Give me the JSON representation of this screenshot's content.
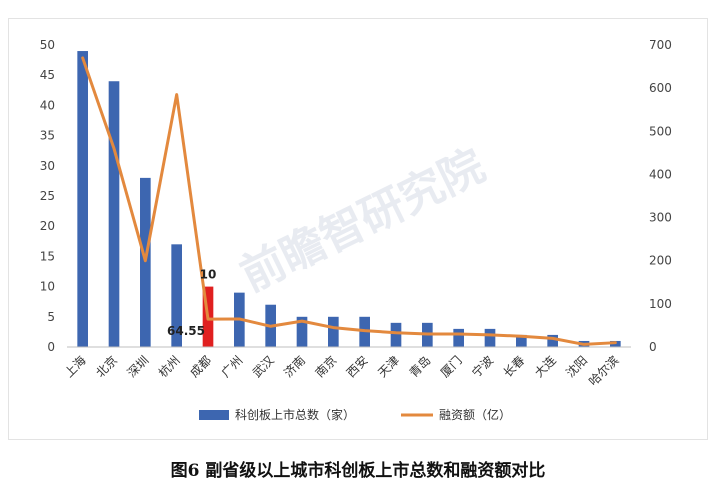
{
  "chart_data": {
    "type": "bar",
    "title": "",
    "categories": [
      "上海",
      "北京",
      "深圳",
      "杭州",
      "成都",
      "广州",
      "武汉",
      "济南",
      "南京",
      "西安",
      "天津",
      "青岛",
      "厦门",
      "宁波",
      "长春",
      "大连",
      "沈阳",
      "哈尔滨"
    ],
    "series": [
      {
        "name": "科创板上市总数（家）",
        "type": "bar",
        "axis": "left",
        "values": [
          49,
          44,
          28,
          17,
          10,
          9,
          7,
          5,
          5,
          5,
          4,
          4,
          3,
          3,
          2,
          2,
          1,
          1
        ]
      },
      {
        "name": "融资额（亿）",
        "type": "line",
        "axis": "right",
        "values": [
          670,
          460,
          200,
          585,
          64.55,
          65,
          48,
          60,
          45,
          38,
          33,
          30,
          30,
          28,
          25,
          20,
          6,
          10
        ]
      }
    ],
    "ylim_left": [
      0,
      50
    ],
    "yticks_left": [
      "0",
      "5",
      "10",
      "15",
      "20",
      "25",
      "30",
      "35",
      "40",
      "45",
      "50"
    ],
    "ylim_right": [
      0,
      700
    ],
    "yticks_right": [
      "0",
      "100",
      "200",
      "300",
      "400",
      "500",
      "600",
      "700"
    ],
    "highlight": {
      "index": 4,
      "color": "#e02020",
      "bar_label": "10",
      "line_label": "64.55"
    },
    "legend_position": "bottom",
    "grid": false,
    "colors": {
      "bar": "#3d66b0",
      "line": "#e3893e"
    },
    "watermark": "前瞻智研究院"
  },
  "caption": "图6  副省级以上城市科创板上市总数和融资额对比"
}
